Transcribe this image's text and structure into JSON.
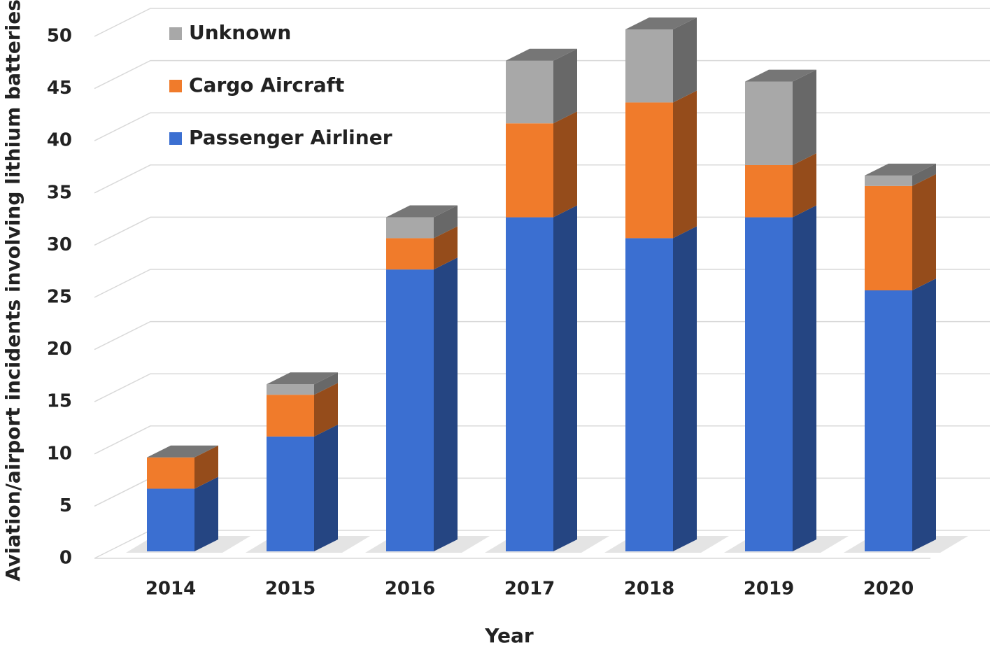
{
  "chart_data": {
    "type": "bar3d_stacked",
    "x_label": "Year",
    "y_label": "Aviation/airport incidents involving lithium batteries",
    "categories": [
      "2014",
      "2015",
      "2016",
      "2017",
      "2018",
      "2019",
      "2020"
    ],
    "series": [
      {
        "name": "Passenger Airliner",
        "color": "#3b6fd1",
        "values": [
          6,
          11,
          27,
          32,
          30,
          32,
          25
        ]
      },
      {
        "name": "Cargo Aircraft",
        "color": "#f07b2b",
        "values": [
          3,
          4,
          3,
          9,
          13,
          5,
          10
        ]
      },
      {
        "name": "Unknown",
        "color": "#a8a8a8",
        "values": [
          0,
          1,
          2,
          6,
          7,
          8,
          1
        ]
      }
    ],
    "ylim": [
      0,
      50
    ],
    "yticks": [
      0,
      5,
      10,
      15,
      20,
      25,
      30,
      35,
      40,
      45,
      50
    ],
    "grid": true
  }
}
